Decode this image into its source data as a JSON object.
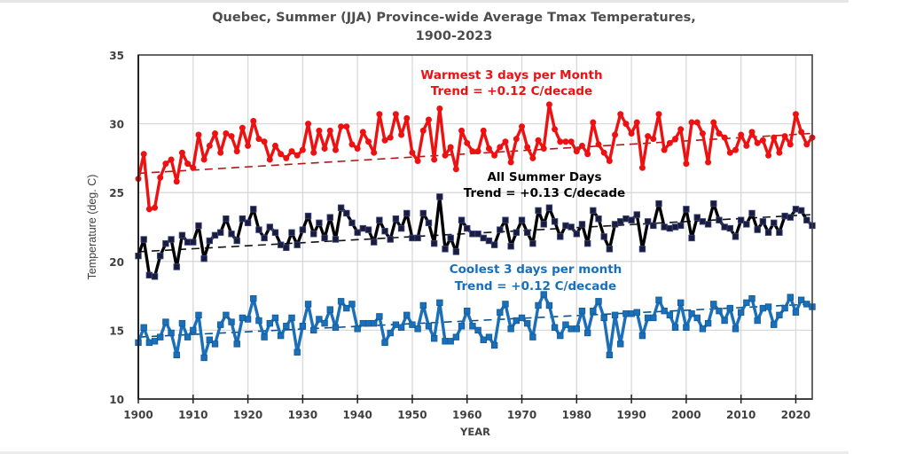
{
  "chart_data": {
    "type": "line",
    "title": [
      "Quebec, Summer (JJA) Province-wide Average Tmax Temperatures,",
      "1900-2023"
    ],
    "xlabel": "YEAR",
    "ylabel": "Temperature (deg. C)",
    "xlim": [
      1900,
      2023
    ],
    "ylim": [
      10,
      35
    ],
    "xticks": [
      1900,
      1910,
      1920,
      1930,
      1940,
      1950,
      1960,
      1970,
      1980,
      1990,
      2000,
      2010,
      2020
    ],
    "yticks": [
      10,
      15,
      20,
      25,
      30,
      35
    ],
    "grid": true,
    "x_start": 1900,
    "series": [
      {
        "name": "Warmest 3 days per Month",
        "color": "#ee1111",
        "marker": "circle",
        "trend_per_decade": 0.12,
        "trend_line": {
          "start": 26.4,
          "end": 29.3
        },
        "annotation": [
          "Warmest 3 days per Month",
          "Trend = +0.12 C/decade"
        ],
        "values": [
          26.0,
          27.8,
          23.8,
          23.9,
          26.1,
          27.1,
          27.4,
          25.8,
          27.9,
          27.1,
          26.8,
          29.2,
          27.4,
          28.4,
          29.3,
          27.9,
          29.3,
          29.1,
          28.0,
          29.7,
          28.4,
          30.2,
          28.9,
          28.7,
          27.4,
          28.4,
          27.8,
          27.5,
          28.0,
          27.7,
          28.1,
          30.0,
          27.9,
          29.5,
          28.2,
          29.5,
          28.1,
          29.8,
          29.8,
          28.5,
          28.2,
          29.4,
          28.7,
          27.9,
          30.7,
          28.8,
          29.0,
          30.7,
          29.2,
          30.4,
          27.9,
          27.3,
          29.5,
          30.3,
          27.4,
          31.1,
          27.7,
          28.3,
          26.7,
          29.5,
          28.6,
          28.0,
          28.0,
          29.5,
          28.2,
          27.7,
          28.3,
          28.7,
          27.2,
          28.9,
          29.8,
          28.3,
          27.5,
          28.8,
          28.2,
          31.4,
          29.6,
          28.7,
          28.7,
          28.7,
          28.0,
          28.4,
          27.8,
          30.1,
          28.5,
          27.9,
          27.3,
          29.2,
          30.7,
          30.0,
          29.3,
          30.1,
          26.8,
          29.1,
          28.9,
          30.7,
          28.1,
          28.6,
          28.9,
          29.6,
          27.1,
          30.1,
          30.1,
          29.3,
          27.2,
          30.1,
          29.3,
          29.0,
          27.9,
          28.1,
          29.2,
          28.4,
          29.4,
          28.6,
          28.8,
          27.7,
          29.0,
          27.9,
          29.1,
          28.5,
          30.7,
          29.4,
          28.5,
          29.0
        ]
      },
      {
        "name": "All Summer Days",
        "color": "#000000",
        "marker": "square",
        "trend_per_decade": 0.13,
        "trend_line": {
          "start": 20.7,
          "end": 23.4
        },
        "annotation": [
          "All Summer Days",
          "Trend = +0.13 C/decade"
        ],
        "values": [
          20.4,
          21.6,
          19.0,
          18.9,
          20.4,
          21.3,
          21.6,
          19.6,
          21.9,
          21.4,
          21.4,
          22.6,
          20.2,
          21.5,
          21.9,
          22.1,
          23.1,
          22.0,
          21.5,
          23.1,
          22.8,
          23.8,
          22.3,
          21.7,
          22.5,
          22.1,
          21.2,
          21.0,
          22.1,
          21.2,
          22.3,
          23.3,
          22.0,
          22.8,
          21.7,
          23.2,
          21.6,
          23.9,
          23.5,
          22.8,
          22.1,
          22.4,
          22.3,
          21.4,
          23.0,
          22.2,
          21.6,
          23.1,
          22.4,
          23.5,
          21.7,
          21.7,
          23.5,
          22.8,
          21.3,
          24.7,
          20.9,
          21.7,
          20.7,
          23.0,
          22.4,
          22.0,
          22.0,
          21.7,
          21.5,
          21.2,
          22.3,
          23.0,
          21.1,
          22.1,
          23.0,
          22.1,
          21.3,
          23.7,
          22.7,
          23.9,
          22.9,
          21.8,
          22.6,
          22.5,
          22.0,
          22.7,
          21.3,
          23.7,
          23.1,
          21.8,
          20.9,
          22.7,
          22.9,
          23.1,
          23.0,
          23.4,
          20.9,
          22.9,
          22.6,
          24.2,
          22.5,
          22.4,
          22.5,
          22.6,
          23.8,
          21.7,
          23.2,
          22.9,
          22.7,
          24.2,
          23.0,
          22.5,
          22.4,
          21.8,
          23.0,
          22.7,
          23.5,
          22.3,
          22.9,
          22.1,
          22.8,
          22.1,
          23.3,
          23.2,
          23.8,
          23.7,
          23.0,
          22.6
        ]
      },
      {
        "name": "Coolest 3 days per month",
        "color": "#1a6fb8",
        "marker": "square",
        "trend_per_decade": 0.12,
        "trend_line": {
          "start": 14.5,
          "end": 16.9
        },
        "annotation": [
          "Coolest 3 days per month",
          "Trend = +0.12 C/decade"
        ],
        "values": [
          14.1,
          15.2,
          14.1,
          14.2,
          14.5,
          15.6,
          14.8,
          13.2,
          15.5,
          14.5,
          15.0,
          16.1,
          13.0,
          14.3,
          14.0,
          15.4,
          16.1,
          15.6,
          14.0,
          15.9,
          15.8,
          17.3,
          15.7,
          14.5,
          15.5,
          15.9,
          14.6,
          15.3,
          15.9,
          13.4,
          15.3,
          16.9,
          15.0,
          15.8,
          15.5,
          16.5,
          15.2,
          17.1,
          16.6,
          16.9,
          15.1,
          15.5,
          15.5,
          15.5,
          16.0,
          14.1,
          14.8,
          15.4,
          15.2,
          16.1,
          15.4,
          15.1,
          16.8,
          15.3,
          14.4,
          17.0,
          14.2,
          14.2,
          14.5,
          15.3,
          16.4,
          15.3,
          15.0,
          14.3,
          14.5,
          13.9,
          16.3,
          16.9,
          15.1,
          15.7,
          15.9,
          15.5,
          14.5,
          16.8,
          17.6,
          16.8,
          15.2,
          14.6,
          15.4,
          15.1,
          15.1,
          16.4,
          14.8,
          16.4,
          17.1,
          15.9,
          13.2,
          16.1,
          14.0,
          16.2,
          16.2,
          16.3,
          14.6,
          15.9,
          15.9,
          17.2,
          16.4,
          16.1,
          15.2,
          17.0,
          15.2,
          16.2,
          15.9,
          15.1,
          15.5,
          16.9,
          16.4,
          15.7,
          16.6,
          15.1,
          16.3,
          17.0,
          17.3,
          15.7,
          16.6,
          16.7,
          15.4,
          16.1,
          16.6,
          17.4,
          16.3,
          17.2,
          16.9,
          16.7
        ]
      }
    ]
  }
}
